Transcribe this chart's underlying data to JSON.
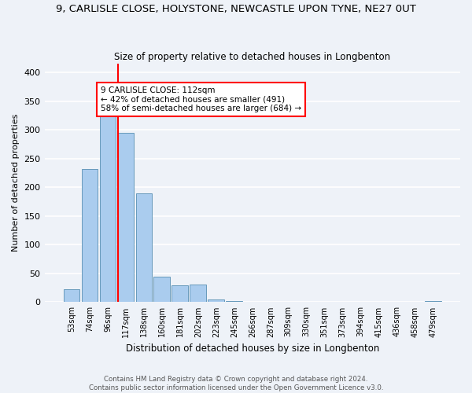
{
  "title": "9, CARLISLE CLOSE, HOLYSTONE, NEWCASTLE UPON TYNE, NE27 0UT",
  "subtitle": "Size of property relative to detached houses in Longbenton",
  "xlabel": "Distribution of detached houses by size in Longbenton",
  "ylabel": "Number of detached properties",
  "bar_values": [
    23,
    232,
    325,
    295,
    190,
    45,
    29,
    30,
    5,
    2,
    1,
    0,
    0,
    0,
    0,
    0,
    0,
    0,
    0,
    0,
    2
  ],
  "bar_labels": [
    "53sqm",
    "74sqm",
    "96sqm",
    "117sqm",
    "138sqm",
    "160sqm",
    "181sqm",
    "202sqm",
    "223sqm",
    "245sqm",
    "266sqm",
    "287sqm",
    "309sqm",
    "330sqm",
    "351sqm",
    "373sqm",
    "394sqm",
    "415sqm",
    "436sqm",
    "458sqm",
    "479sqm"
  ],
  "bar_color": "#aaccee",
  "bar_edge_color": "#6699bb",
  "vline_x": 2.55,
  "vline_color": "red",
  "annotation_text": "9 CARLISLE CLOSE: 112sqm\n← 42% of detached houses are smaller (491)\n58% of semi-detached houses are larger (684) →",
  "annotation_box_color": "white",
  "annotation_box_edge": "red",
  "ylim": [
    0,
    415
  ],
  "yticks": [
    0,
    50,
    100,
    150,
    200,
    250,
    300,
    350,
    400
  ],
  "footer1": "Contains HM Land Registry data © Crown copyright and database right 2024.",
  "footer2": "Contains public sector information licensed under the Open Government Licence v3.0.",
  "bg_color": "#eef2f8"
}
